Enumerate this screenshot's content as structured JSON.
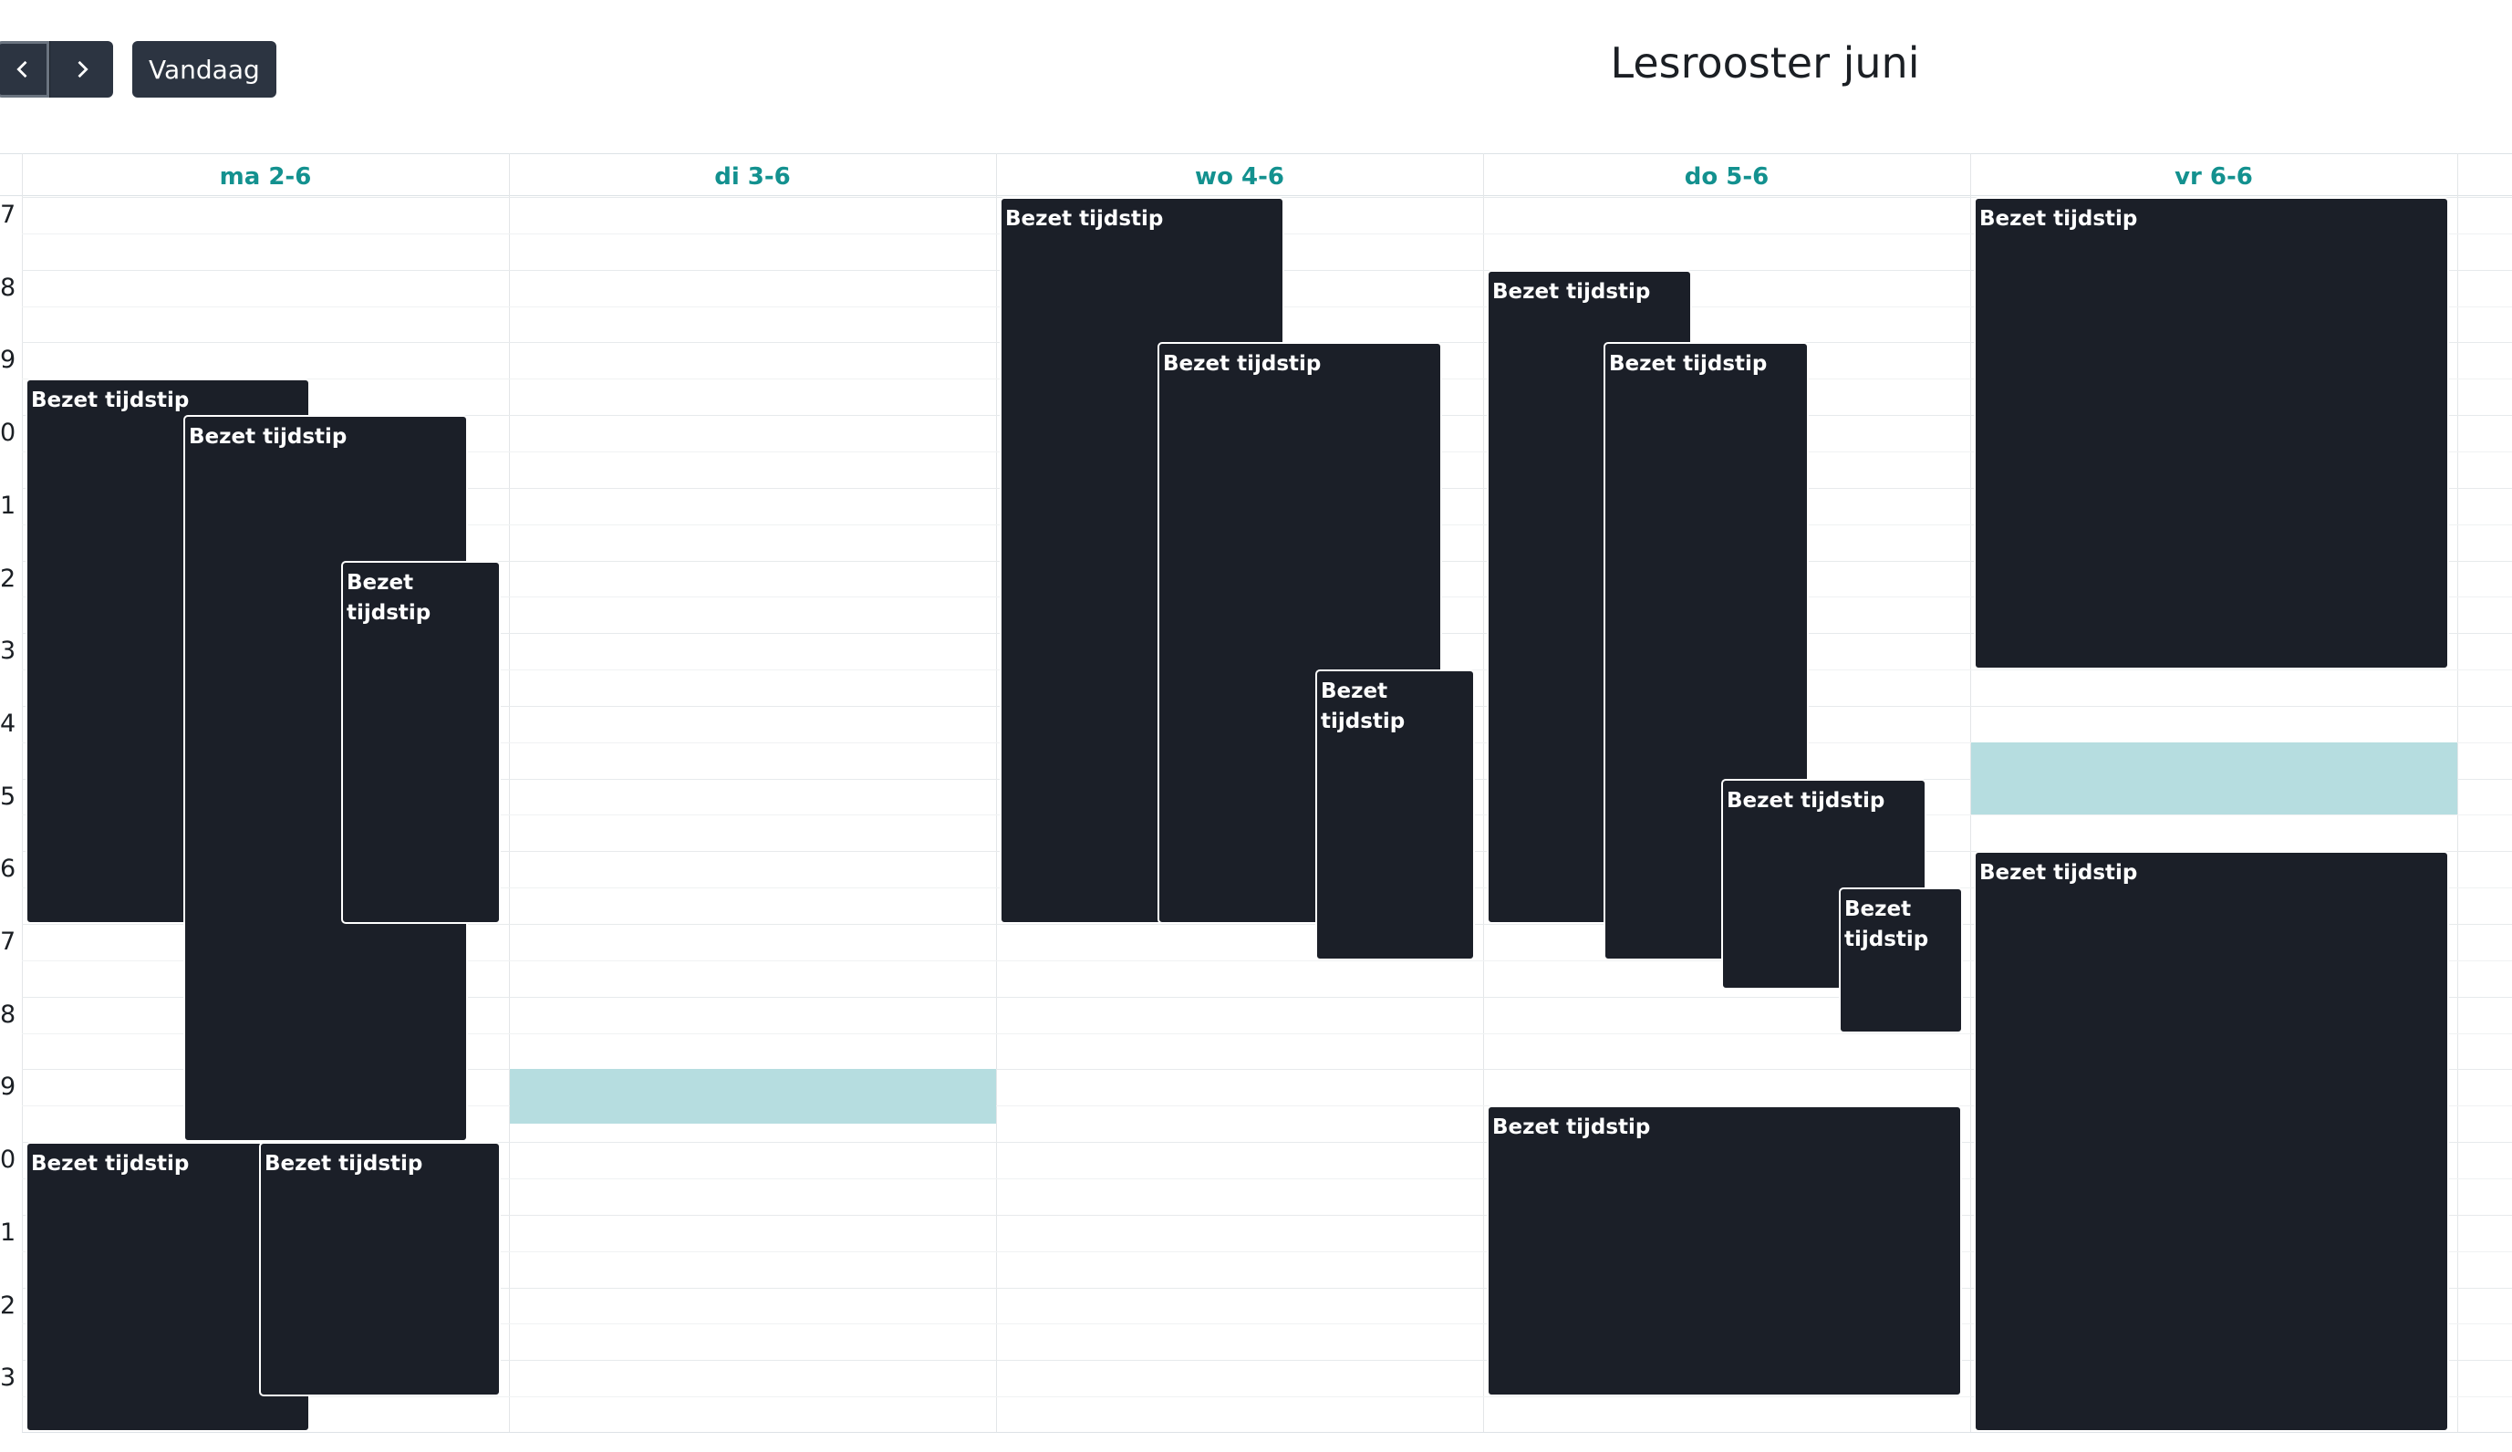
{
  "toolbar": {
    "today_label": "Vandaag",
    "title": "Lesrooster juni"
  },
  "days": [
    {
      "label": "ma 2-6"
    },
    {
      "label": "di 3-6"
    },
    {
      "label": "wo 4-6"
    },
    {
      "label": "do 5-6"
    },
    {
      "label": "vr 6-6"
    }
  ],
  "hours": [
    "7",
    "8",
    "9",
    "0",
    "1",
    "2",
    "3",
    "4",
    "5",
    "6",
    "7",
    "8",
    "9",
    "0",
    "1",
    "2",
    "3"
  ],
  "event_label": "Bezet tijdstip",
  "events": [
    {
      "day": 0,
      "start": 9.5,
      "end": 17,
      "col": 0
    },
    {
      "day": 0,
      "start": 10,
      "end": 20,
      "col": 1
    },
    {
      "day": 0,
      "start": 12,
      "end": 17,
      "col": 2
    },
    {
      "day": 0,
      "start": 20,
      "end": 24,
      "col": 0
    },
    {
      "day": 0,
      "start": 20,
      "end": 23.5,
      "col": 3
    },
    {
      "day": 2,
      "start": 7,
      "end": 17,
      "col": 0
    },
    {
      "day": 2,
      "start": 9,
      "end": 17,
      "col": 1
    },
    {
      "day": 2,
      "start": 13.5,
      "end": 17.5,
      "col": 2
    },
    {
      "day": 3,
      "start": 8,
      "end": 17,
      "col": 0
    },
    {
      "day": 3,
      "start": 9,
      "end": 17.5,
      "col": 1
    },
    {
      "day": 3,
      "start": 15,
      "end": 17.9,
      "col": 2
    },
    {
      "day": 3,
      "start": 16.5,
      "end": 18.5,
      "col": 3
    },
    {
      "day": 3,
      "start": 19.5,
      "end": 23.5,
      "col": 4
    },
    {
      "day": 4,
      "start": 7,
      "end": 13.5,
      "col": 5
    },
    {
      "day": 4,
      "start": 16,
      "end": 24,
      "col": 5
    }
  ],
  "free_slots": [
    {
      "day": 1,
      "start": 19,
      "end": 19.75
    },
    {
      "day": 4,
      "start": 14.5,
      "end": 15.5
    }
  ]
}
